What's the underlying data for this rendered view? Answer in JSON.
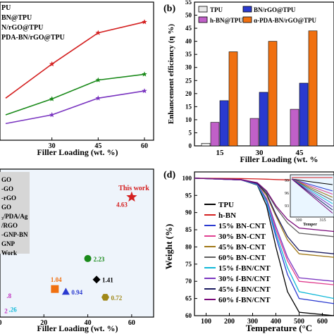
{
  "panels": {
    "a": {
      "legend": [
        "PU",
        "BN@TPU",
        "N/rGO@TPU",
        "PDA-BN/rGO@TPU"
      ],
      "xlabel": "Filler Loading (wt. %)",
      "xticks": [
        "30",
        "45",
        "60"
      ]
    },
    "b": {
      "label": "(b)",
      "ylabel": "Enhancement efficiency (η %)",
      "xlabel": "Filler Loading (wt. %",
      "legend": [
        "TPU",
        "BN/rGO@TPU",
        "h-BN@TPU",
        "ɑ-PDA-BN/rGO@TPU"
      ],
      "yticks": [
        "0",
        "5",
        "10",
        "15",
        "20",
        "25",
        "30",
        "35",
        "40",
        "45",
        "50",
        "55"
      ],
      "xticks": [
        "15",
        "30",
        "45"
      ]
    },
    "c": {
      "legend": [
        "GO",
        "-GO",
        "-rGO",
        "GO",
        "₃/PDA/Ag",
        "/RGO",
        "-GNP-BN",
        "GNP",
        "Work"
      ],
      "this_work": "This work",
      "labels": [
        "4.63",
        "2.23",
        "1.41",
        "1.04",
        "0.94",
        "0.72",
        ".26",
        ".8",
        "2"
      ],
      "xlabel": "Filler Loading (wt. %)",
      "xticks": [
        "0",
        "20",
        "40",
        "60"
      ]
    },
    "d": {
      "label": "(d)",
      "ylabel": "Weight (%)",
      "xlabel": "Temperature (°C",
      "yticks": [
        "100",
        "95",
        "90",
        "85",
        "80",
        "75",
        "70",
        "65",
        "60"
      ],
      "xticks": [
        "100",
        "200",
        "300",
        "400",
        "500",
        "600"
      ],
      "legend": [
        "TPU",
        "h-BN",
        "15% BN-CNT",
        "30% BN-CNT",
        "45% BN-CNT",
        "60% BN-CNT",
        "15% f-BN/CNT",
        "30% f-BN/CNT",
        "45% f-BN/CNT",
        "60% f-BN/CNT"
      ],
      "inset_yticks": [
        "99",
        "96",
        "93"
      ],
      "inset_xticks": [
        "300",
        "315"
      ],
      "inset_xlabel": "Temper"
    }
  },
  "colors": {
    "red": "#d42020",
    "green": "#1a8a1a",
    "purple": "#7a35c0",
    "navy": "#1a1a5e",
    "orange": "#f07010",
    "blue": "#2a3ad0",
    "magenta": "#c030c0",
    "olive": "#a08818",
    "cyan": "#10b8d8",
    "pink": "#e04090"
  },
  "chart_data": [
    {
      "panel": "a",
      "type": "line",
      "x": [
        15,
        30,
        45,
        60
      ],
      "xlabel": "Filler Loading (wt. %)",
      "series": [
        {
          "name": "BN@TPU",
          "color": "#7a35c0",
          "values": [
            2.0,
            3.2,
            5.5,
            6.5
          ]
        },
        {
          "name": "N/rGO@TPU",
          "color": "#1a8a1a",
          "values": [
            3.2,
            5.4,
            8.0,
            8.8
          ]
        },
        {
          "name": "PDA-BN/rGO@TPU",
          "color": "#d42020",
          "values": [
            5.5,
            10.2,
            14.5,
            16.0
          ]
        }
      ]
    },
    {
      "panel": "b",
      "type": "bar",
      "categories": [
        "15",
        "30",
        "45"
      ],
      "ylabel": "Enhancement efficiency (η %)",
      "xlabel": "Filler Loading (wt. %",
      "ylim": [
        0,
        55
      ],
      "series": [
        {
          "name": "TPU",
          "values": [
            1,
            0,
            0
          ]
        },
        {
          "name": "h-BN@TPU",
          "values": [
            9,
            10.5,
            14
          ]
        },
        {
          "name": "BN/rGO@TPU",
          "values": [
            17.3,
            20.5,
            24
          ]
        },
        {
          "name": "ɑ-PDA-BN/rGO@TPU",
          "values": [
            36,
            40,
            44
          ]
        }
      ]
    },
    {
      "panel": "c",
      "type": "scatter",
      "xlabel": "Filler Loading (wt. %)",
      "xlim": [
        0,
        70
      ],
      "ylim": [
        0,
        5.5
      ],
      "points": [
        {
          "label": "4.63",
          "x": 60,
          "y": 4.63,
          "shape": "star",
          "color": "#d42020"
        },
        {
          "label": "2.23",
          "x": 40,
          "y": 2.23,
          "shape": "circle",
          "color": "#1a8a1a"
        },
        {
          "label": "1.41",
          "x": 44,
          "y": 1.41,
          "shape": "diamond",
          "color": "#000000"
        },
        {
          "label": "1.04",
          "x": 25,
          "y": 1.04,
          "shape": "square",
          "color": "#f07010"
        },
        {
          "label": "0.94",
          "x": 30,
          "y": 0.94,
          "shape": "triangle",
          "color": "#2a3ad0"
        },
        {
          "label": "0.72",
          "x": 48,
          "y": 0.72,
          "shape": "hexagon",
          "color": "#a08818"
        },
        {
          "label": ".26",
          "x": 4,
          "y": 0.26,
          "shape": "none",
          "color": "#10b8d8"
        },
        {
          "label": ".8",
          "x": 3,
          "y": 0.8,
          "shape": "none",
          "color": "#c030c0"
        },
        {
          "label": "2",
          "x": 2,
          "y": 0.2,
          "shape": "none",
          "color": "#c030c0"
        }
      ]
    },
    {
      "panel": "d",
      "type": "line",
      "xlabel": "Temperature (°C",
      "ylabel": "Weight (%)",
      "xlim": [
        50,
        650
      ],
      "ylim": [
        60,
        101
      ],
      "x": [
        50,
        250,
        320,
        360,
        400,
        450,
        500,
        650
      ],
      "series": [
        {
          "name": "TPU",
          "color": "#000000",
          "values": [
            100,
            99.5,
            98,
            92,
            80,
            67,
            61,
            60
          ]
        },
        {
          "name": "h-BN",
          "color": "#d42020",
          "values": [
            100,
            99.9,
            99.8,
            99.7,
            99.6,
            99.5,
            99.4,
            99.3
          ]
        },
        {
          "name": "15% BN-CNT",
          "color": "#2a3ad0",
          "values": [
            100,
            99.5,
            98.2,
            93,
            83,
            72,
            65,
            63.5
          ]
        },
        {
          "name": "30% BN-CNT",
          "color": "#e04090",
          "values": [
            100,
            99.5,
            98.3,
            93.5,
            85,
            76,
            70,
            69
          ]
        },
        {
          "name": "45% BN-CNT",
          "color": "#a07818",
          "values": [
            100,
            99.6,
            98.5,
            95,
            89,
            82,
            78,
            77
          ]
        },
        {
          "name": "60% BN-CNT",
          "color": "#606060",
          "values": [
            100,
            99.6,
            98.6,
            96,
            91.5,
            87,
            84,
            83
          ]
        },
        {
          "name": "15% f-BN/CNT",
          "color": "#10b8d8",
          "values": [
            100,
            99.5,
            98.1,
            93.2,
            84,
            74,
            67,
            65
          ]
        },
        {
          "name": "30% f-BN/CNT",
          "color": "#7a35c0",
          "values": [
            100,
            99.5,
            98.3,
            94,
            86,
            77,
            71,
            70
          ]
        },
        {
          "name": "45% f-BN/CNT",
          "color": "#1a1a5e",
          "values": [
            100,
            99.6,
            98.5,
            95.5,
            89.5,
            83,
            79,
            78
          ]
        },
        {
          "name": "60% f-BN/CNT",
          "color": "#7a0a7a",
          "values": [
            100,
            99.6,
            98.7,
            96.3,
            92,
            88,
            85.5,
            84.5
          ]
        }
      ]
    }
  ]
}
